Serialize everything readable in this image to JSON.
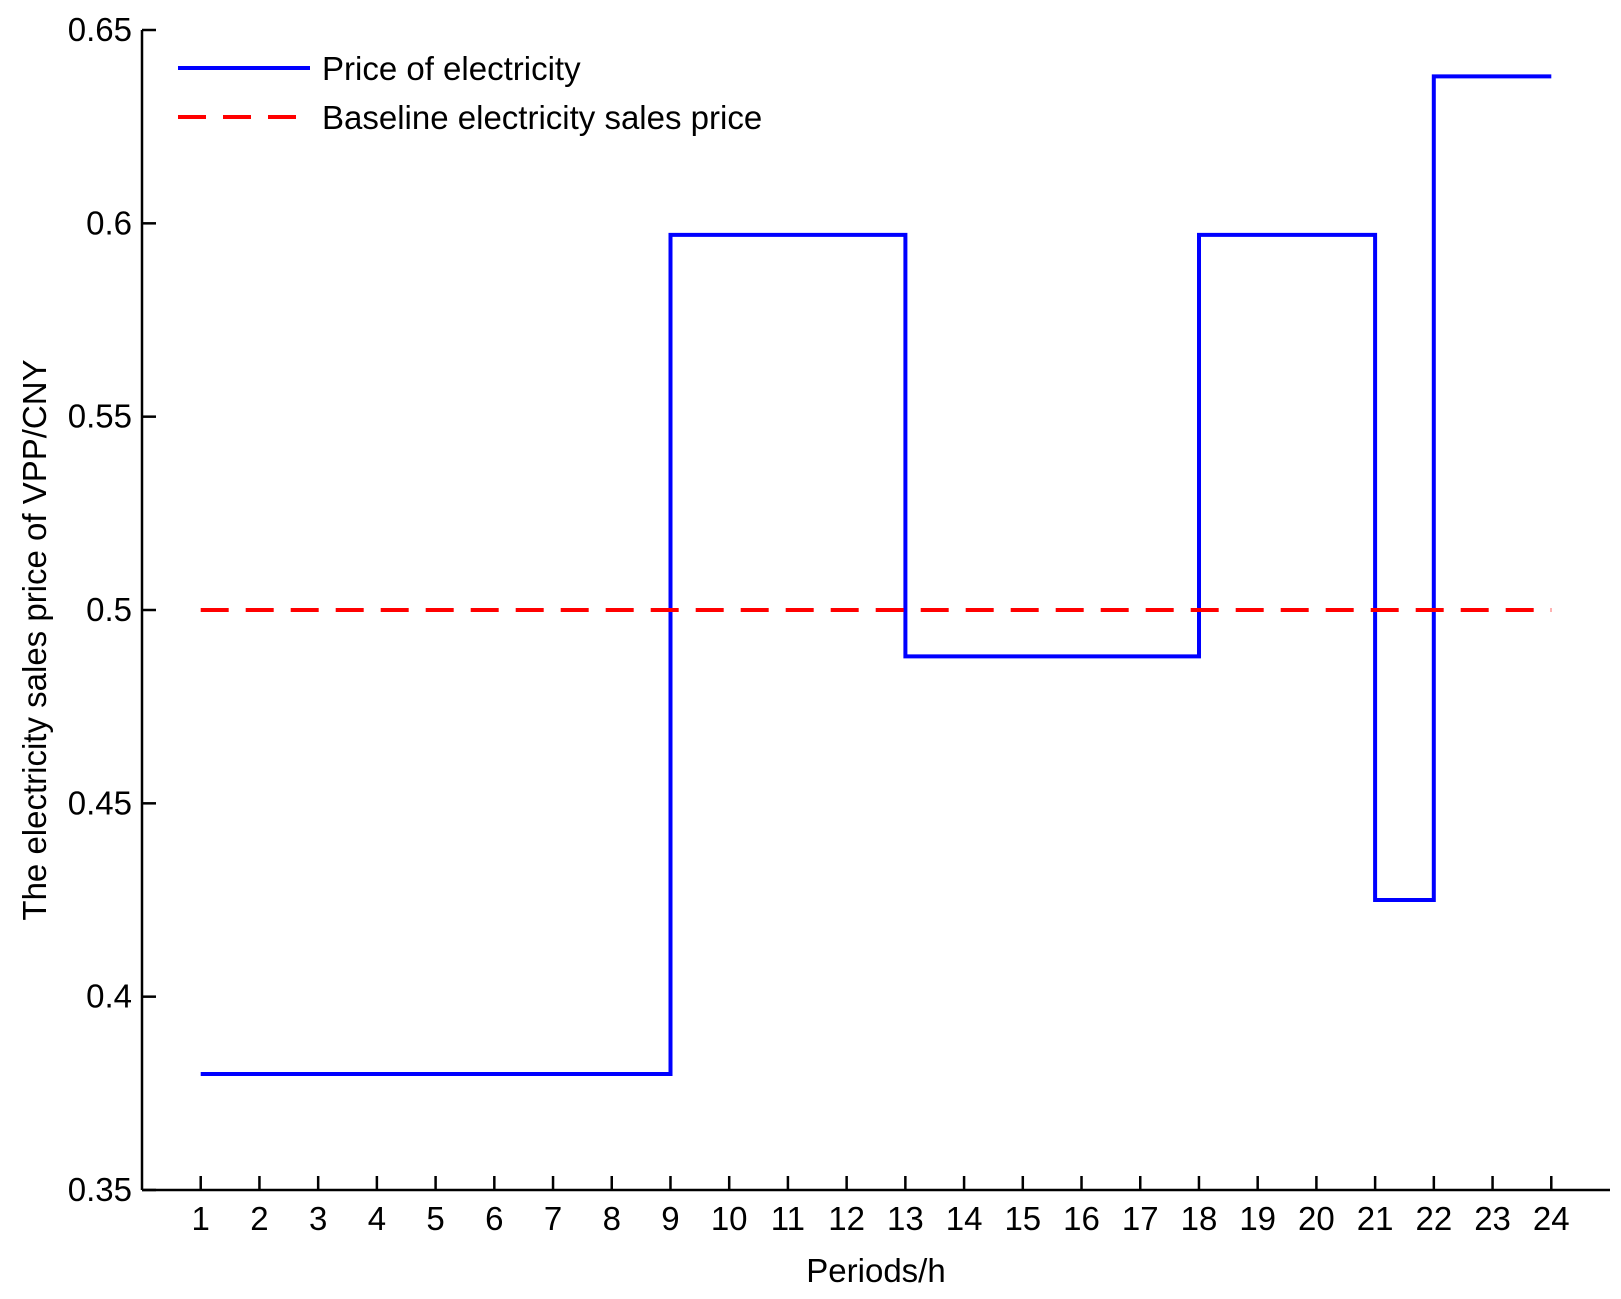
{
  "chart_data": {
    "type": "line",
    "title": "",
    "xlabel": "Periods/h",
    "ylabel": "The electricity sales price of VPP/CNY",
    "xlim": [
      0,
      25
    ],
    "ylim": [
      0.35,
      0.65
    ],
    "grid": false,
    "legend_position": "top-left",
    "x_ticks": [
      "1",
      "2",
      "3",
      "4",
      "5",
      "6",
      "7",
      "8",
      "9",
      "10",
      "11",
      "12",
      "13",
      "14",
      "15",
      "16",
      "17",
      "18",
      "19",
      "20",
      "21",
      "22",
      "23",
      "24"
    ],
    "y_ticks": [
      "0.35",
      "0.4",
      "0.45",
      "0.5",
      "0.55",
      "0.6",
      "0.65"
    ],
    "y_tick_values": [
      0.35,
      0.4,
      0.45,
      0.5,
      0.55,
      0.6,
      0.65
    ],
    "series": [
      {
        "name": "Price of electricity",
        "style": "solid-step",
        "color": "#0000ff",
        "x": [
          1,
          9,
          9,
          13,
          13,
          18,
          18,
          21,
          21,
          22,
          22,
          24
        ],
        "y": [
          0.38,
          0.38,
          0.597,
          0.597,
          0.488,
          0.488,
          0.597,
          0.597,
          0.425,
          0.425,
          0.638,
          0.638
        ]
      },
      {
        "name": "Baseline electricity sales price",
        "style": "dashed",
        "color": "#ff0000",
        "x": [
          1,
          24
        ],
        "y": [
          0.5,
          0.5
        ]
      }
    ]
  }
}
